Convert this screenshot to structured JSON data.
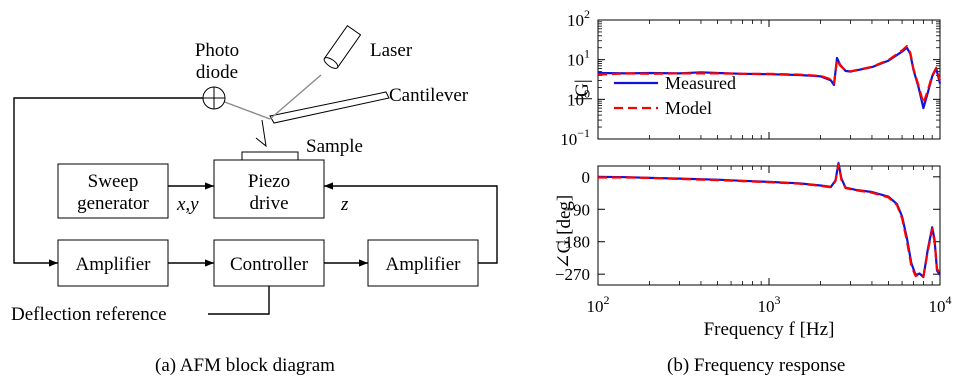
{
  "diagram": {
    "blocks": {
      "sweep": [
        "Sweep",
        "generator"
      ],
      "piezo": [
        "Piezo",
        "drive"
      ],
      "amp_left": "Amplifier",
      "controller": "Controller",
      "amp_right": "Amplifier"
    },
    "labels": {
      "photodiode": [
        "Photo",
        "diode"
      ],
      "laser": "Laser",
      "cantilever": "Cantilever",
      "sample": "Sample",
      "xy": "x,y",
      "z": "z",
      "reference": "Deflection reference"
    },
    "caption": "(a) AFM block diagram"
  },
  "chart_data": [
    {
      "type": "line",
      "panel": "magnitude",
      "ylabel": "|G|",
      "xlabel": "",
      "x_scale": "log",
      "y_scale": "log",
      "xlim": [
        100,
        10000
      ],
      "ylim": [
        0.1,
        100
      ],
      "y_ticks": [
        {
          "v": 0.1,
          "b": "10",
          "e": "−1"
        },
        {
          "v": 1,
          "b": "10",
          "e": "0"
        },
        {
          "v": 10,
          "b": "10",
          "e": "1"
        },
        {
          "v": 100,
          "b": "10",
          "e": "2"
        }
      ],
      "legend": "bottom-left",
      "series": [
        {
          "name": "Measured",
          "color": "#1212d6",
          "style": "solid",
          "x": [
            100,
            150,
            200,
            300,
            400,
            500,
            700,
            1000,
            1500,
            2000,
            2300,
            2400,
            2500,
            2600,
            2800,
            3000,
            4000,
            5000,
            6000,
            6400,
            6700,
            7000,
            7500,
            8000,
            8500,
            9000,
            9500,
            10000
          ],
          "y": [
            4.6,
            4.5,
            4.6,
            4.5,
            4.8,
            4.6,
            4.4,
            4.3,
            4.1,
            3.8,
            3.0,
            2.3,
            11,
            7.5,
            5.2,
            5.0,
            6.5,
            9.5,
            16,
            20,
            14,
            5.5,
            2.0,
            0.6,
            1.5,
            3.8,
            6.0,
            2.5
          ]
        },
        {
          "name": "Model",
          "color": "#ff0000",
          "style": "dashed",
          "x": [
            100,
            150,
            200,
            300,
            400,
            500,
            700,
            1000,
            1500,
            2000,
            2300,
            2400,
            2500,
            2600,
            2800,
            3000,
            4000,
            5000,
            6000,
            6400,
            6700,
            7000,
            7500,
            8000,
            8500,
            9000,
            9500,
            10000
          ],
          "y": [
            4.2,
            4.5,
            4.4,
            4.5,
            4.5,
            4.5,
            4.4,
            4.4,
            4.2,
            3.9,
            3.2,
            2.5,
            10,
            7.2,
            5.3,
            5.1,
            6.6,
            9.8,
            17,
            22,
            15,
            5.8,
            2.2,
            0.8,
            1.7,
            4.0,
            6.2,
            3.0
          ]
        }
      ]
    },
    {
      "type": "line",
      "panel": "phase",
      "ylabel": "∠G [deg]",
      "xlabel": "Frequency f [Hz]",
      "x_scale": "log",
      "y_scale": "linear",
      "xlim": [
        100,
        10000
      ],
      "ylim": [
        -300,
        30
      ],
      "x_ticks": [
        {
          "v": 100,
          "b": "10",
          "e": "2"
        },
        {
          "v": 1000,
          "b": "10",
          "e": "3"
        },
        {
          "v": 10000,
          "b": "10",
          "e": "4"
        }
      ],
      "y_ticks": [
        0,
        -90,
        -180,
        -270
      ],
      "series": [
        {
          "name": "Measured",
          "color": "#1212d6",
          "style": "solid",
          "x": [
            100,
            150,
            200,
            300,
            500,
            700,
            1000,
            1500,
            2000,
            2300,
            2450,
            2550,
            2650,
            2800,
            3200,
            4000,
            5000,
            5600,
            6000,
            6400,
            6800,
            7200,
            7600,
            8000,
            8500,
            9000,
            9300,
            9600,
            10000
          ],
          "y": [
            0,
            -1,
            -3,
            -5,
            -8,
            -11,
            -14,
            -18,
            -24,
            -28,
            -10,
            38,
            -5,
            -30,
            -36,
            -42,
            -55,
            -75,
            -110,
            -170,
            -240,
            -272,
            -268,
            -278,
            -200,
            -140,
            -175,
            -260,
            -272
          ]
        },
        {
          "name": "Model",
          "color": "#ff0000",
          "style": "dashed",
          "x": [
            100,
            150,
            200,
            300,
            500,
            700,
            1000,
            1500,
            2000,
            2300,
            2450,
            2550,
            2650,
            2800,
            3200,
            4000,
            5000,
            5600,
            6000,
            6400,
            6800,
            7200,
            7600,
            8000,
            8500,
            9000,
            9300,
            9600,
            10000
          ],
          "y": [
            -2,
            -2,
            -3,
            -6,
            -9,
            -12,
            -15,
            -19,
            -25,
            -29,
            -12,
            35,
            -8,
            -31,
            -37,
            -44,
            -57,
            -78,
            -115,
            -178,
            -248,
            -275,
            -270,
            -276,
            -205,
            -145,
            -180,
            -255,
            -268
          ]
        }
      ]
    }
  ],
  "caption_b": "(b) Frequency response"
}
